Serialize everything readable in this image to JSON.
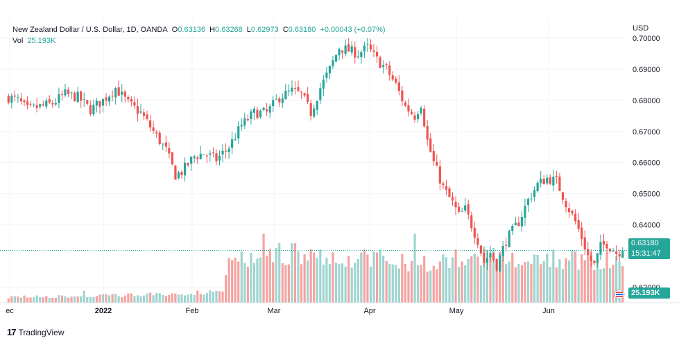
{
  "legend": {
    "symbol": "New Zealand Dollar / U.S. Dollar, 1D, OANDA",
    "o_label": "O",
    "o_value": "0.63136",
    "h_label": "H",
    "h_value": "0.63268",
    "l_label": "L",
    "l_value": "0.62973",
    "c_label": "C",
    "c_value": "0.63180",
    "change": "+0.00043 (+0.07%)",
    "vol_label": "Vol",
    "vol_value": "25.193K"
  },
  "axis": {
    "currency": "USD"
  },
  "badges": {
    "price": "0.63180",
    "countdown": "15:31:47",
    "volume": "25.193K"
  },
  "brand": {
    "logo": "17",
    "name": "TradingView"
  },
  "colors": {
    "up": "#26a69a",
    "down": "#ef5350",
    "up_vol": "#9fd4cf",
    "down_vol": "#f5a3a1",
    "grid": "#f0f3fa"
  },
  "chart_data": {
    "type": "candlestick",
    "y_axis_ticks": [
      "0.70000",
      "0.69000",
      "0.68000",
      "0.67000",
      "0.66000",
      "0.65000",
      "0.64000",
      "0.62000"
    ],
    "ylim": [
      0.615,
      0.706
    ],
    "x_axis_labels": [
      "ec",
      "2022",
      "Feb",
      "Mar",
      "Apr",
      "May",
      "Jun"
    ],
    "last_price": 0.6318,
    "close_keypoints": [
      [
        0,
        0.681
      ],
      [
        3,
        0.68
      ],
      [
        6,
        0.677
      ],
      [
        10,
        0.678
      ],
      [
        14,
        0.679
      ],
      [
        18,
        0.682
      ],
      [
        22,
        0.681
      ],
      [
        26,
        0.677
      ],
      [
        30,
        0.68
      ],
      [
        34,
        0.684
      ],
      [
        38,
        0.679
      ],
      [
        42,
        0.676
      ],
      [
        46,
        0.67
      ],
      [
        50,
        0.664
      ],
      [
        53,
        0.656
      ],
      [
        55,
        0.657
      ],
      [
        59,
        0.662
      ],
      [
        62,
        0.663
      ],
      [
        66,
        0.661
      ],
      [
        70,
        0.665
      ],
      [
        74,
        0.672
      ],
      [
        78,
        0.676
      ],
      [
        82,
        0.676
      ],
      [
        86,
        0.681
      ],
      [
        90,
        0.683
      ],
      [
        93,
        0.682
      ],
      [
        96,
        0.676
      ],
      [
        99,
        0.684
      ],
      [
        102,
        0.69
      ],
      [
        105,
        0.697
      ],
      [
        108,
        0.696
      ],
      [
        111,
        0.695
      ],
      [
        114,
        0.697
      ],
      [
        117,
        0.693
      ],
      [
        120,
        0.69
      ],
      [
        123,
        0.685
      ],
      [
        126,
        0.678
      ],
      [
        129,
        0.675
      ],
      [
        131,
        0.679
      ],
      [
        133,
        0.667
      ],
      [
        135,
        0.66
      ],
      [
        138,
        0.652
      ],
      [
        141,
        0.647
      ],
      [
        143,
        0.643
      ],
      [
        145,
        0.645
      ],
      [
        147,
        0.64
      ],
      [
        149,
        0.635
      ],
      [
        151,
        0.628
      ],
      [
        153,
        0.631
      ],
      [
        155,
        0.627
      ],
      [
        158,
        0.635
      ],
      [
        162,
        0.641
      ],
      [
        165,
        0.648
      ],
      [
        168,
        0.653
      ],
      [
        171,
        0.655
      ],
      [
        174,
        0.654
      ],
      [
        177,
        0.647
      ],
      [
        180,
        0.641
      ],
      [
        182,
        0.636
      ],
      [
        184,
        0.63
      ],
      [
        186,
        0.627
      ],
      [
        188,
        0.633
      ],
      [
        190,
        0.634
      ],
      [
        193,
        0.631
      ],
      [
        195,
        0.6318
      ]
    ],
    "volume_keypoints": [
      [
        0,
        1.2
      ],
      [
        20,
        1.3
      ],
      [
        40,
        1.6
      ],
      [
        55,
        1.9
      ],
      [
        68,
        2.5
      ],
      [
        70,
        8.5
      ],
      [
        80,
        9.5
      ],
      [
        90,
        10.5
      ],
      [
        100,
        9.5
      ],
      [
        110,
        9.5
      ],
      [
        120,
        9.5
      ],
      [
        125,
        8.5
      ],
      [
        135,
        8.5
      ],
      [
        145,
        9.5
      ],
      [
        155,
        10.5
      ],
      [
        165,
        9.5
      ],
      [
        175,
        9.0
      ],
      [
        185,
        9.0
      ],
      [
        195,
        8.0
      ]
    ],
    "volume_spikes": [
      [
        24,
        2.5
      ],
      [
        81,
        14.5
      ],
      [
        90,
        12.5
      ],
      [
        91,
        12.5
      ],
      [
        129,
        14.5
      ]
    ]
  }
}
